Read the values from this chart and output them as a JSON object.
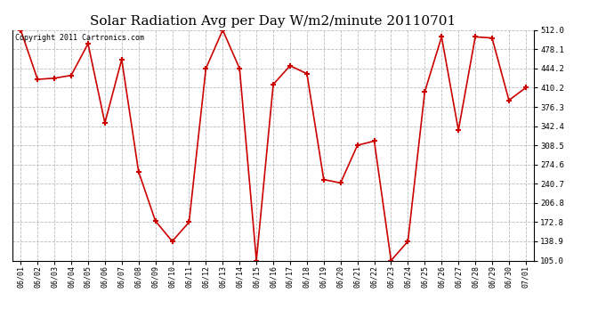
{
  "title": "Solar Radiation Avg per Day W/m2/minute 20110701",
  "copyright": "Copyright 2011 Cartronics.com",
  "x_labels": [
    "06/01",
    "06/02",
    "06/03",
    "06/04",
    "06/05",
    "06/06",
    "06/07",
    "06/08",
    "06/09",
    "06/10",
    "06/11",
    "06/12",
    "06/13",
    "06/14",
    "06/15",
    "06/16",
    "06/17",
    "06/18",
    "06/19",
    "06/20",
    "06/21",
    "06/22",
    "06/23",
    "06/24",
    "06/25",
    "06/26",
    "06/27",
    "06/28",
    "06/29",
    "06/30",
    "07/01"
  ],
  "values": [
    512.0,
    425.0,
    427.0,
    432.0,
    488.0,
    348.0,
    460.0,
    262.0,
    175.0,
    138.9,
    172.8,
    444.2,
    512.0,
    444.2,
    105.0,
    416.0,
    449.0,
    435.0,
    248.0,
    242.0,
    308.5,
    316.0,
    105.0,
    138.9,
    403.0,
    500.0,
    335.0,
    500.0,
    498.0,
    388.0,
    410.2
  ],
  "line_color": "#cc0000",
  "marker": "+",
  "marker_size": 5,
  "marker_edge_width": 1.5,
  "line_width": 1.2,
  "ylim": [
    105.0,
    512.0
  ],
  "yticks": [
    105.0,
    138.9,
    172.8,
    206.8,
    240.7,
    274.6,
    308.5,
    342.4,
    376.3,
    410.2,
    444.2,
    478.1,
    512.0
  ],
  "background_color": "#ffffff",
  "grid_color": "#bbbbbb",
  "grid_linestyle": "--",
  "title_fontsize": 11,
  "tick_fontsize": 6,
  "ytick_fontsize": 6.5,
  "copyright_fontsize": 6
}
